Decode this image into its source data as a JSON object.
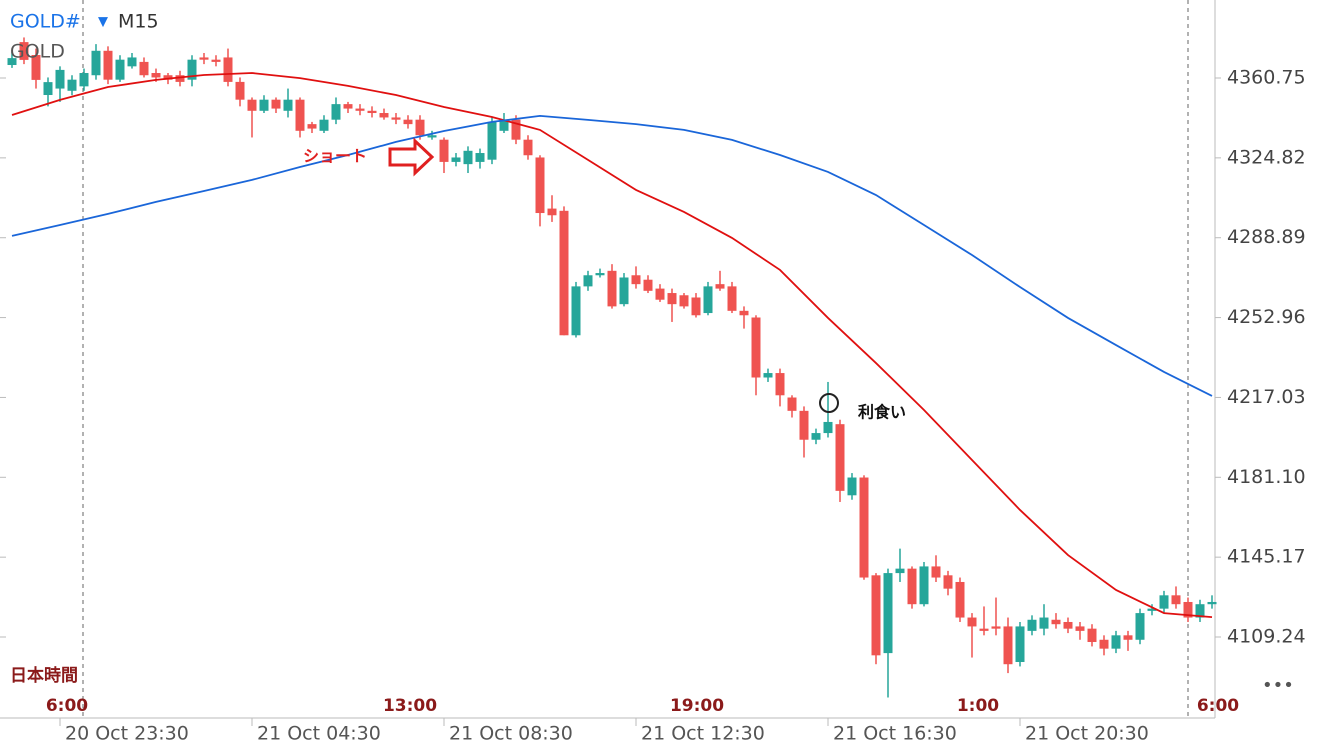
{
  "chart_data": {
    "type": "candlestick",
    "title": "GOLD#",
    "timeframe": "M15",
    "subtitle": "GOLD",
    "up_color": "#26a69a",
    "down_color": "#ef5350",
    "ylim": [
      4072.8,
      4395.85
    ],
    "yticks": [
      4109.24,
      4145.17,
      {
        "value": 4181.1,
        "label": "4181.10"
      },
      4217.03,
      4252.96,
      4288.89,
      4324.82,
      4360.75
    ],
    "xticks": [
      {
        "value": 4,
        "label": "20 Oct 23:30"
      },
      {
        "value": 20,
        "label": "21 Oct 04:30"
      },
      {
        "value": 36,
        "label": "21 Oct 08:30"
      },
      {
        "value": 52,
        "label": "21 Oct 12:30"
      },
      {
        "value": 68,
        "label": "21 Oct 16:30"
      },
      {
        "value": 84,
        "label": "21 Oct 20:30"
      }
    ],
    "ohlc": [
      [
        4366.6,
        4372.4,
        4365.3,
        4369.7
      ],
      [
        4376.9,
        4379.0,
        4367.0,
        4368.9
      ],
      [
        4371.1,
        4374.0,
        4356.0,
        4359.9
      ],
      [
        4353.1,
        4361.0,
        4348.0,
        4358.9
      ],
      [
        4356.0,
        4366.0,
        4350.0,
        4364.4
      ],
      [
        4355.0,
        4362.0,
        4353.0,
        4360.0
      ],
      [
        4357,
        4365,
        4355,
        4363
      ],
      [
        4362,
        4376,
        4360,
        4373
      ],
      [
        4373,
        4375,
        4358,
        4360
      ],
      [
        4360,
        4371,
        4359,
        4369
      ],
      [
        4366,
        4372,
        4365,
        4370
      ],
      [
        4368,
        4370,
        4361,
        4362
      ],
      [
        4363,
        4365,
        4359,
        4361
      ],
      [
        4362,
        4363,
        4358,
        4360
      ],
      [
        4362,
        4364,
        4357,
        4359
      ],
      [
        4360,
        4371,
        4357,
        4369
      ],
      [
        4370,
        4372,
        4367,
        4369
      ],
      [
        4369,
        4371,
        4366,
        4368
      ],
      [
        4370,
        4374,
        4357,
        4359
      ],
      [
        4359,
        4361,
        4348,
        4351
      ],
      [
        4351,
        4352,
        4334,
        4346
      ],
      [
        4346,
        4353,
        4345,
        4351
      ],
      [
        4351,
        4352,
        4345,
        4347
      ],
      [
        4346,
        4356,
        4343,
        4351
      ],
      [
        4351,
        4352,
        4334,
        4337
      ],
      [
        4340,
        4341,
        4336,
        4338
      ],
      [
        4337,
        4344,
        4336,
        4342
      ],
      [
        4342,
        4352,
        4340,
        4349
      ],
      [
        4349,
        4350,
        4345,
        4347
      ],
      [
        4347,
        4349,
        4344,
        4346
      ],
      [
        4346,
        4348,
        4343,
        4345
      ],
      [
        4345,
        4347,
        4342,
        4343
      ],
      [
        4343,
        4345,
        4340,
        4342
      ],
      [
        4342,
        4344,
        4338,
        4340
      ],
      [
        4342,
        4344,
        4333,
        4335
      ],
      [
        4334,
        4337,
        4333,
        4335
      ],
      [
        4333,
        4334,
        4318,
        4323
      ],
      [
        4323,
        4327,
        4321,
        4325
      ],
      [
        4322,
        4330,
        4318,
        4328
      ],
      [
        4323,
        4329,
        4320,
        4327
      ],
      [
        4324,
        4343,
        4322,
        4341
      ],
      [
        4337,
        4345,
        4336,
        4342
      ],
      [
        4342,
        4344,
        4331,
        4333
      ],
      [
        4333,
        4335,
        4324,
        4326
      ],
      [
        4325,
        4326,
        4294,
        4300
      ],
      [
        4302,
        4308,
        4296,
        4299
      ],
      [
        4301,
        4303,
        4245,
        4245
      ],
      [
        4245,
        4269,
        4244,
        4267
      ],
      [
        4267,
        4274,
        4265,
        4272
      ],
      [
        4272,
        4275,
        4271,
        4273
      ],
      [
        4274,
        4277,
        4257,
        4258
      ],
      [
        4259,
        4273,
        4258,
        4271
      ],
      [
        4272,
        4276,
        4266,
        4268
      ],
      [
        4270,
        4272,
        4264,
        4265
      ],
      [
        4266,
        4268,
        4260,
        4261
      ],
      [
        4264,
        4266,
        4251,
        4259
      ],
      [
        4263,
        4264,
        4257,
        4258
      ],
      [
        4262,
        4264,
        4253,
        4254
      ],
      [
        4255,
        4269,
        4254,
        4267
      ],
      [
        4268,
        4274,
        4265,
        4266
      ],
      [
        4267,
        4269,
        4255,
        4256
      ],
      [
        4256,
        4258,
        4248,
        4254
      ],
      [
        4253,
        4254,
        4218,
        4226
      ],
      [
        4226,
        4230,
        4224,
        4228
      ],
      [
        4228,
        4230,
        4213,
        4218
      ],
      [
        4217,
        4218,
        4208,
        4211
      ],
      [
        4211,
        4213,
        4190,
        4198
      ],
      [
        4198,
        4203,
        4196,
        4201
      ],
      [
        4201,
        4224,
        4199,
        4206
      ],
      [
        4205,
        4207,
        4170,
        4175
      ],
      [
        4173,
        4183,
        4171,
        4181
      ],
      [
        4181,
        4182,
        4135,
        4136
      ],
      [
        4137,
        4138,
        4097,
        4101
      ],
      [
        4102,
        4140,
        4082,
        4138
      ],
      [
        4138,
        4149,
        4134,
        4140
      ],
      [
        4140,
        4141,
        4122,
        4124
      ],
      [
        4124,
        4143,
        4123,
        4141
      ],
      [
        4141,
        4146,
        4134,
        4136
      ],
      [
        4137,
        4139,
        4128,
        4131
      ],
      [
        4134,
        4136,
        4116,
        4118
      ],
      [
        4118,
        4120,
        4100,
        4114
      ],
      [
        4113,
        4123,
        4110,
        4112
      ],
      [
        4114,
        4127,
        4110,
        4113
      ],
      [
        4114,
        4118,
        4093,
        4097
      ],
      [
        4098,
        4116,
        4096,
        4114
      ],
      [
        4112,
        4119,
        4110,
        4117
      ],
      [
        4113,
        4124,
        4110,
        4118
      ],
      [
        4117,
        4120,
        4113,
        4115
      ],
      [
        4116,
        4118,
        4111,
        4113
      ],
      [
        4114,
        4116,
        4108,
        4112
      ],
      [
        4113,
        4115,
        4105,
        4107
      ],
      [
        4108,
        4110,
        4101,
        4104
      ],
      [
        4104,
        4112,
        4102,
        4110
      ],
      [
        4110,
        4112,
        4103,
        4108
      ],
      [
        4108,
        4122,
        4106,
        4120
      ],
      [
        4121,
        4124,
        4119,
        4122
      ],
      [
        4122,
        4130,
        4120,
        4128
      ],
      [
        4128,
        4132,
        4122,
        4124
      ],
      [
        4125,
        4127,
        4116,
        4118
      ],
      [
        4118,
        4126,
        4116,
        4124
      ],
      [
        4124,
        4128,
        4122,
        4125
      ]
    ],
    "ma_x": [
      0,
      4,
      8,
      12,
      16,
      20,
      24,
      28,
      32,
      36,
      40,
      44,
      48,
      52,
      56,
      60,
      64,
      68,
      72,
      76,
      80,
      84,
      88,
      92,
      96,
      100
    ],
    "moving_averages": [
      {
        "color": "#e01010",
        "values": [
          4344.1,
          4350.9,
          4356.7,
          4359.9,
          4362.1,
          4363.0,
          4360.7,
          4357.2,
          4353.1,
          4347.7,
          4343.2,
          4337.4,
          4323.9,
          4310.4,
          4300.5,
          4288.8,
          4274.4,
          4252.8,
          4232.5,
          4211.4,
          4188.9,
          4166.4,
          4146.1,
          4130.4,
          4120.0,
          4118.2
        ]
      },
      {
        "color": "#1a66d9",
        "values": [
          4289.7,
          4294.6,
          4299.6,
          4305.0,
          4309.9,
          4314.9,
          4320.7,
          4326.1,
          4332.0,
          4336.9,
          4341.0,
          4343.7,
          4341.9,
          4340.0,
          4337.4,
          4332.9,
          4326.1,
          4318.5,
          4308.1,
          4294.6,
          4281.1,
          4266.7,
          4252.8,
          4240.6,
          4228.5,
          4217.7
        ]
      }
    ],
    "annotations": [
      "ショート",
      "利食い"
    ],
    "time_zone_label": "日本時間",
    "local_times": [
      "6:00",
      "13:00",
      "19:00",
      "1:00",
      "6:00"
    ]
  }
}
